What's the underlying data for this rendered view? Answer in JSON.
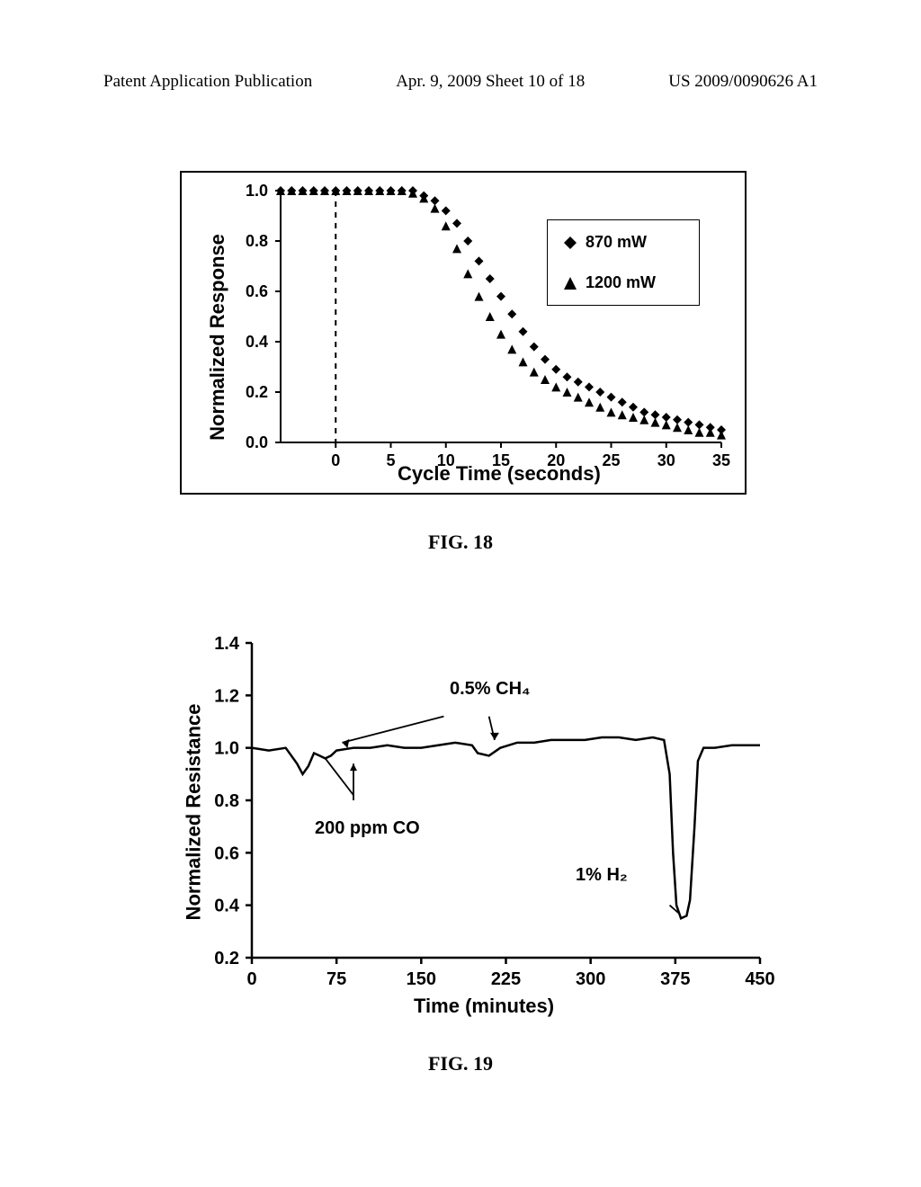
{
  "header": {
    "left": "Patent Application Publication",
    "center": "Apr. 9, 2009  Sheet 10 of 18",
    "right": "US 2009/0090626 A1"
  },
  "fig18": {
    "caption": "FIG. 18",
    "type": "scatter",
    "ylabel": "Normalized Response",
    "xlabel": "Cycle Time (seconds)",
    "xlim": [
      -5,
      35
    ],
    "ylim": [
      0.0,
      1.0
    ],
    "xticks": [
      0,
      5,
      10,
      15,
      20,
      25,
      30,
      35
    ],
    "yticks": [
      0.0,
      0.2,
      0.4,
      0.6,
      0.8,
      1.0
    ],
    "legend": [
      {
        "label": "870 mW",
        "marker": "diamond",
        "color": "#000000"
      },
      {
        "label": "1200 mW",
        "marker": "triangle",
        "color": "#000000"
      }
    ],
    "vline_x": 0,
    "series": {
      "diamond": [
        [
          -5,
          1.0
        ],
        [
          -4,
          1.0
        ],
        [
          -3,
          1.0
        ],
        [
          -2,
          1.0
        ],
        [
          -1,
          1.0
        ],
        [
          0,
          1.0
        ],
        [
          1,
          1.0
        ],
        [
          2,
          1.0
        ],
        [
          3,
          1.0
        ],
        [
          4,
          1.0
        ],
        [
          5,
          1.0
        ],
        [
          6,
          1.0
        ],
        [
          7,
          1.0
        ],
        [
          8,
          0.98
        ],
        [
          9,
          0.96
        ],
        [
          10,
          0.92
        ],
        [
          11,
          0.87
        ],
        [
          12,
          0.8
        ],
        [
          13,
          0.72
        ],
        [
          14,
          0.65
        ],
        [
          15,
          0.58
        ],
        [
          16,
          0.51
        ],
        [
          17,
          0.44
        ],
        [
          18,
          0.38
        ],
        [
          19,
          0.33
        ],
        [
          20,
          0.29
        ],
        [
          21,
          0.26
        ],
        [
          22,
          0.24
        ],
        [
          23,
          0.22
        ],
        [
          24,
          0.2
        ],
        [
          25,
          0.18
        ],
        [
          26,
          0.16
        ],
        [
          27,
          0.14
        ],
        [
          28,
          0.12
        ],
        [
          29,
          0.11
        ],
        [
          30,
          0.1
        ],
        [
          31,
          0.09
        ],
        [
          32,
          0.08
        ],
        [
          33,
          0.07
        ],
        [
          34,
          0.06
        ],
        [
          35,
          0.05
        ]
      ],
      "triangle": [
        [
          -5,
          1.0
        ],
        [
          -4,
          1.0
        ],
        [
          -3,
          1.0
        ],
        [
          -2,
          1.0
        ],
        [
          -1,
          1.0
        ],
        [
          0,
          1.0
        ],
        [
          1,
          1.0
        ],
        [
          2,
          1.0
        ],
        [
          3,
          1.0
        ],
        [
          4,
          1.0
        ],
        [
          5,
          1.0
        ],
        [
          6,
          1.0
        ],
        [
          7,
          0.99
        ],
        [
          8,
          0.97
        ],
        [
          9,
          0.93
        ],
        [
          10,
          0.86
        ],
        [
          11,
          0.77
        ],
        [
          12,
          0.67
        ],
        [
          13,
          0.58
        ],
        [
          14,
          0.5
        ],
        [
          15,
          0.43
        ],
        [
          16,
          0.37
        ],
        [
          17,
          0.32
        ],
        [
          18,
          0.28
        ],
        [
          19,
          0.25
        ],
        [
          20,
          0.22
        ],
        [
          21,
          0.2
        ],
        [
          22,
          0.18
        ],
        [
          23,
          0.16
        ],
        [
          24,
          0.14
        ],
        [
          25,
          0.12
        ],
        [
          26,
          0.11
        ],
        [
          27,
          0.1
        ],
        [
          28,
          0.09
        ],
        [
          29,
          0.08
        ],
        [
          30,
          0.07
        ],
        [
          31,
          0.06
        ],
        [
          32,
          0.05
        ],
        [
          33,
          0.04
        ],
        [
          34,
          0.04
        ],
        [
          35,
          0.03
        ]
      ]
    },
    "box": {
      "border_color": "#000000",
      "background_color": "#ffffff"
    }
  },
  "fig19": {
    "caption": "FIG. 19",
    "type": "line",
    "ylabel": "Normalized Resistance",
    "xlabel": "Time (minutes)",
    "xlim": [
      0,
      450
    ],
    "ylim": [
      0.2,
      1.4
    ],
    "xticks": [
      0,
      75,
      150,
      225,
      300,
      375,
      450
    ],
    "yticks": [
      0.2,
      0.4,
      0.6,
      0.8,
      1.0,
      1.2,
      1.4
    ],
    "annotations": {
      "ch4": "0.5% CH₄",
      "co": "200 ppm CO",
      "h2": "1% H₂"
    },
    "line_color": "#000000",
    "line_width": 2.5,
    "data": [
      [
        0,
        1.0
      ],
      [
        15,
        0.99
      ],
      [
        30,
        1.0
      ],
      [
        40,
        0.94
      ],
      [
        45,
        0.9
      ],
      [
        50,
        0.93
      ],
      [
        55,
        0.98
      ],
      [
        60,
        0.97
      ],
      [
        65,
        0.96
      ],
      [
        70,
        0.97
      ],
      [
        75,
        0.99
      ],
      [
        90,
        1.0
      ],
      [
        105,
        1.0
      ],
      [
        120,
        1.01
      ],
      [
        135,
        1.0
      ],
      [
        150,
        1.0
      ],
      [
        165,
        1.01
      ],
      [
        180,
        1.02
      ],
      [
        195,
        1.01
      ],
      [
        200,
        0.98
      ],
      [
        210,
        0.97
      ],
      [
        220,
        1.0
      ],
      [
        235,
        1.02
      ],
      [
        250,
        1.02
      ],
      [
        265,
        1.03
      ],
      [
        280,
        1.03
      ],
      [
        295,
        1.03
      ],
      [
        310,
        1.04
      ],
      [
        325,
        1.04
      ],
      [
        340,
        1.03
      ],
      [
        355,
        1.04
      ],
      [
        365,
        1.03
      ],
      [
        370,
        0.9
      ],
      [
        373,
        0.6
      ],
      [
        376,
        0.4
      ],
      [
        380,
        0.35
      ],
      [
        385,
        0.36
      ],
      [
        388,
        0.42
      ],
      [
        392,
        0.7
      ],
      [
        395,
        0.95
      ],
      [
        400,
        1.0
      ],
      [
        410,
        1.0
      ],
      [
        425,
        1.01
      ],
      [
        440,
        1.01
      ],
      [
        450,
        1.01
      ]
    ]
  }
}
